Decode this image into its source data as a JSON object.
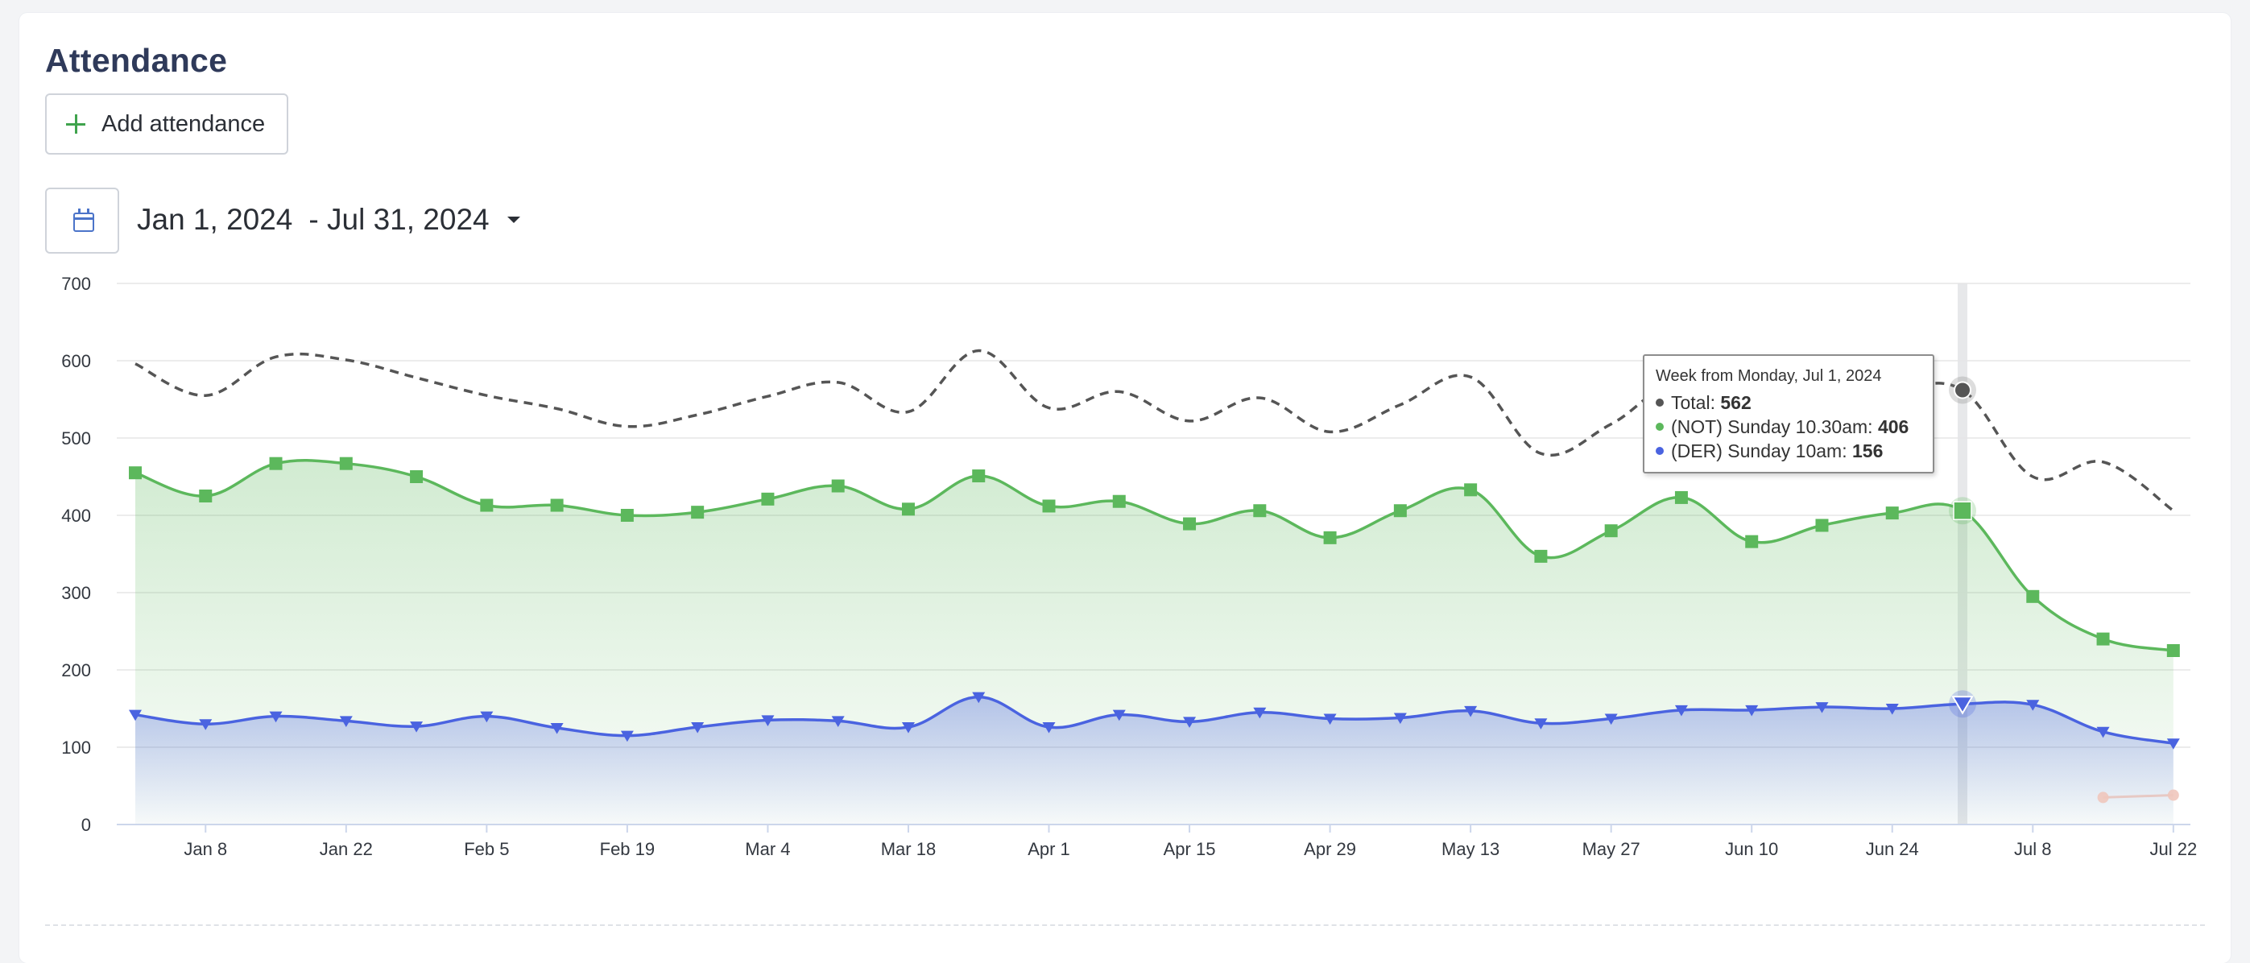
{
  "page": {
    "title": "Attendance",
    "add_button_label": "Add attendance",
    "date_range": {
      "start": "Jan 1, 2024",
      "end": "- Jul 31, 2024"
    }
  },
  "icons": {
    "add": "plus-icon",
    "calendar": "calendar-icon",
    "dropdown": "caret-down-icon"
  },
  "colors": {
    "total": "#555555",
    "not": "#5cb85c",
    "der": "#4a63e0",
    "accent_add": "#3fa34d"
  },
  "chart_data": {
    "type": "area",
    "ylim": [
      0,
      700
    ],
    "y_ticks": [
      0,
      100,
      200,
      300,
      400,
      500,
      600,
      700
    ],
    "x_tick_labels": [
      "Jan 8",
      "Jan 22",
      "Feb 5",
      "Feb 19",
      "Mar 4",
      "Mar 18",
      "Apr 1",
      "Apr 15",
      "Apr 29",
      "May 13",
      "May 27",
      "Jun 10",
      "Jun 24",
      "Jul 8",
      "Jul 22"
    ],
    "x": [
      "Jan 1",
      "Jan 8",
      "Jan 15",
      "Jan 22",
      "Jan 29",
      "Feb 5",
      "Feb 12",
      "Feb 19",
      "Feb 26",
      "Mar 4",
      "Mar 11",
      "Mar 18",
      "Mar 25",
      "Apr 1",
      "Apr 8",
      "Apr 15",
      "Apr 22",
      "Apr 29",
      "May 6",
      "May 13",
      "May 20",
      "May 27",
      "Jun 3",
      "Jun 10",
      "Jun 17",
      "Jun 24",
      "Jul 1",
      "Jul 8",
      "Jul 15",
      "Jul 22"
    ],
    "series": [
      {
        "name": "Total",
        "style": "dashed",
        "values": [
          596,
          555,
          605,
          601,
          578,
          555,
          538,
          515,
          530,
          554,
          572,
          534,
          613,
          539,
          560,
          522,
          552,
          508,
          543,
          579,
          480,
          518,
          572,
          512,
          538,
          559,
          562,
          450,
          469,
          406
        ]
      },
      {
        "name": "(NOT) Sunday 10.30am",
        "marker": "square",
        "values": [
          455,
          425,
          467,
          467,
          450,
          413,
          413,
          400,
          404,
          421,
          438,
          408,
          451,
          412,
          418,
          389,
          406,
          371,
          406,
          433,
          347,
          380,
          423,
          366,
          387,
          403,
          406,
          295,
          240,
          225
        ]
      },
      {
        "name": "(DER) Sunday 10am",
        "marker": "triangle-down",
        "values": [
          142,
          130,
          140,
          134,
          127,
          140,
          125,
          115,
          126,
          135,
          134,
          126,
          165,
          126,
          142,
          133,
          145,
          137,
          138,
          147,
          131,
          137,
          148,
          148,
          152,
          150,
          156,
          155,
          120,
          105
        ]
      }
    ],
    "faint_series": {
      "values": [
        {
          "x": "Jul 15",
          "y": 35
        },
        {
          "x": "Jul 22",
          "y": 38
        }
      ]
    },
    "hover_index": 26,
    "tooltip": {
      "header": "Week from Monday, Jul 1, 2024",
      "rows": [
        {
          "label": "Total: ",
          "value": "562"
        },
        {
          "label": "(NOT) Sunday 10.30am: ",
          "value": "406"
        },
        {
          "label": "(DER) Sunday 10am: ",
          "value": "156"
        }
      ]
    },
    "grid": true,
    "legend": "none"
  }
}
